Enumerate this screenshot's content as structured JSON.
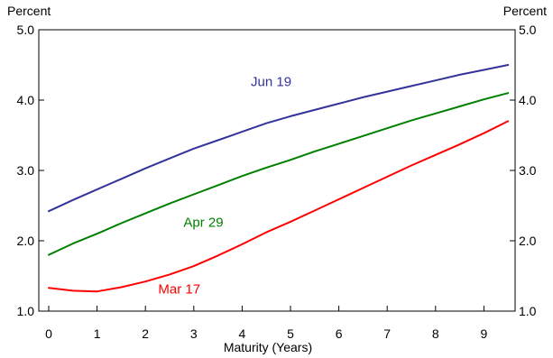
{
  "chart_data": {
    "type": "line",
    "title": "",
    "xlabel": "Maturity (Years)",
    "ylabel_left": "Percent",
    "ylabel_right": "Percent",
    "xlim": [
      0,
      9.5
    ],
    "ylim": [
      1.0,
      5.0
    ],
    "x_ticks": [
      0,
      1,
      2,
      3,
      4,
      5,
      6,
      7,
      8,
      9
    ],
    "x_tick_labels": [
      "0",
      "1",
      "2",
      "3",
      "4",
      "5",
      "6",
      "7",
      "8",
      "9"
    ],
    "y_ticks": [
      1.0,
      2.0,
      3.0,
      4.0,
      5.0
    ],
    "y_tick_labels": [
      "1.0",
      "2.0",
      "3.0",
      "4.0",
      "5.0"
    ],
    "grid": false,
    "legend": "inline labels",
    "x": [
      0,
      0.5,
      1,
      1.5,
      2,
      2.5,
      3,
      3.5,
      4,
      4.5,
      5,
      5.5,
      6,
      6.5,
      7,
      7.5,
      8,
      8.5,
      9,
      9.5
    ],
    "series": [
      {
        "name": "Jun 19",
        "color": "#333399",
        "label_at": [
          4.6,
          4.2
        ],
        "values": [
          2.42,
          2.58,
          2.73,
          2.88,
          3.03,
          3.17,
          3.31,
          3.43,
          3.55,
          3.67,
          3.77,
          3.86,
          3.95,
          4.04,
          4.12,
          4.2,
          4.28,
          4.36,
          4.43,
          4.5
        ]
      },
      {
        "name": "Apr 29",
        "color": "#008000",
        "label_at": [
          3.2,
          2.2
        ],
        "values": [
          1.8,
          1.96,
          2.1,
          2.25,
          2.39,
          2.53,
          2.66,
          2.79,
          2.92,
          3.04,
          3.15,
          3.27,
          3.38,
          3.49,
          3.6,
          3.71,
          3.81,
          3.91,
          4.01,
          4.1
        ]
      },
      {
        "name": "Mar 17",
        "color": "#ff0000",
        "label_at": [
          2.7,
          1.25
        ],
        "values": [
          1.33,
          1.29,
          1.28,
          1.34,
          1.42,
          1.52,
          1.64,
          1.79,
          1.95,
          2.12,
          2.27,
          2.43,
          2.59,
          2.75,
          2.91,
          3.07,
          3.22,
          3.37,
          3.53,
          3.7
        ]
      }
    ]
  }
}
